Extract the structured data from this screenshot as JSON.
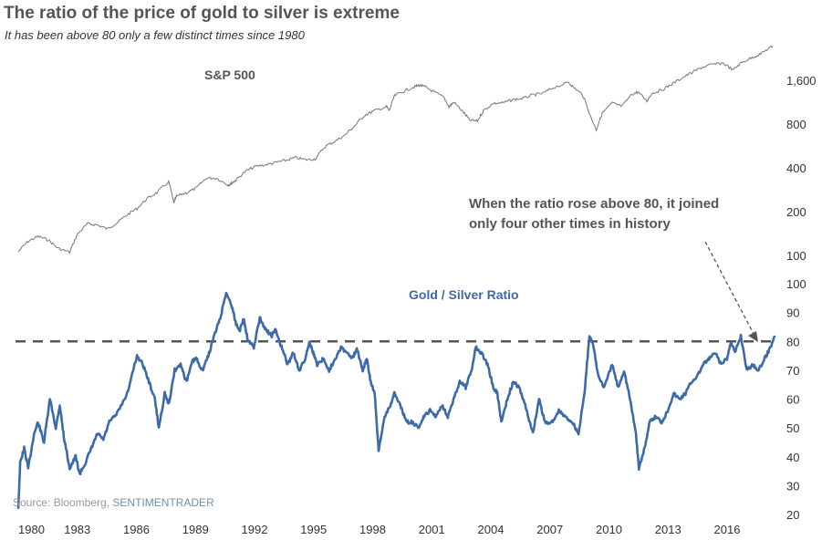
{
  "title": "The ratio of the price of gold to silver is extreme",
  "subtitle": "It has been above 80 only a few distinct times since 1980",
  "source": {
    "prefix": "Source: Bloomberg, ",
    "brand": "SENTIMENTRADER"
  },
  "colors": {
    "sp500": "#777777",
    "ratio": "#3d6aa8",
    "threshold": "#555555",
    "annotation": "#555555"
  },
  "chart_data": [
    {
      "type": "line",
      "title": "S&P 500",
      "scale": "log",
      "y_ticks": [
        100,
        200,
        400,
        800,
        1600
      ],
      "y_tick_labels": [
        "100",
        "200",
        "400",
        "800",
        "1,600"
      ],
      "series": [
        {
          "name": "S&P 500",
          "x": [
            1980.0,
            1980.5,
            1981.0,
            1981.5,
            1982.0,
            1982.6,
            1983.0,
            1983.5,
            1984.0,
            1984.5,
            1985.0,
            1985.5,
            1986.0,
            1986.5,
            1987.0,
            1987.6,
            1987.85,
            1988.0,
            1988.5,
            1989.0,
            1989.5,
            1990.0,
            1990.6,
            1990.8,
            1991.0,
            1991.5,
            1992.0,
            1992.5,
            1993.0,
            1993.5,
            1994.0,
            1994.5,
            1995.0,
            1995.5,
            1996.0,
            1996.5,
            1997.0,
            1997.5,
            1998.0,
            1998.6,
            1998.75,
            1999.0,
            1999.5,
            2000.0,
            2000.25,
            2000.5,
            2001.0,
            2001.5,
            2001.75,
            2002.0,
            2002.5,
            2002.8,
            2003.2,
            2003.5,
            2004.0,
            2004.5,
            2005.0,
            2005.5,
            2006.0,
            2006.5,
            2007.0,
            2007.8,
            2008.0,
            2008.5,
            2008.9,
            2009.2,
            2009.5,
            2010.0,
            2010.5,
            2011.0,
            2011.3,
            2011.75,
            2012.0,
            2012.5,
            2013.0,
            2013.5,
            2014.0,
            2014.5,
            2015.0,
            2015.6,
            2016.1,
            2016.5,
            2017.0,
            2017.5,
            2018.0,
            2018.1
          ],
          "y": [
            106,
            125,
            135,
            128,
            112,
            105,
            140,
            165,
            162,
            152,
            168,
            190,
            210,
            245,
            270,
            320,
            230,
            255,
            270,
            290,
            340,
            340,
            305,
            315,
            330,
            380,
            410,
            420,
            435,
            450,
            470,
            455,
            460,
            560,
            610,
            670,
            780,
            920,
            990,
            1050,
            990,
            1250,
            1350,
            1440,
            1480,
            1450,
            1330,
            1220,
            1050,
            1130,
            960,
            850,
            840,
            990,
            1110,
            1120,
            1180,
            1200,
            1270,
            1300,
            1420,
            1540,
            1450,
            1270,
            900,
            730,
            950,
            1115,
            1060,
            1280,
            1330,
            1150,
            1300,
            1370,
            1500,
            1650,
            1800,
            1950,
            2050,
            2100,
            1880,
            2100,
            2270,
            2430,
            2700,
            2750
          ]
        }
      ]
    },
    {
      "type": "line",
      "title": "Gold / Silver Ratio",
      "ylim": [
        20,
        100
      ],
      "y_ticks": [
        20,
        30,
        40,
        50,
        60,
        70,
        80,
        90,
        100
      ],
      "threshold": 80,
      "annotation": [
        "When the ratio rose above 80, it joined",
        "only four other times in history"
      ],
      "x_ticks": [
        "1980",
        "1983",
        "1986",
        "1989",
        "1992",
        "1995",
        "1998",
        "2001",
        "2004",
        "2007",
        "2010",
        "2013",
        "2016"
      ],
      "series": [
        {
          "name": "Gold / Silver Ratio",
          "x": [
            1980.0,
            1980.1,
            1980.3,
            1980.5,
            1980.8,
            1981.0,
            1981.3,
            1981.6,
            1981.9,
            1982.1,
            1982.3,
            1982.6,
            1982.9,
            1983.1,
            1983.4,
            1983.7,
            1984.0,
            1984.3,
            1984.6,
            1985.0,
            1985.5,
            1986.0,
            1986.3,
            1986.6,
            1986.9,
            1987.1,
            1987.4,
            1987.6,
            1987.9,
            1988.2,
            1988.5,
            1988.8,
            1989.0,
            1989.3,
            1989.6,
            1989.9,
            1990.2,
            1990.5,
            1990.8,
            1991.0,
            1991.2,
            1991.4,
            1991.6,
            1991.9,
            1992.2,
            1992.5,
            1992.8,
            1993.0,
            1993.3,
            1993.6,
            1993.9,
            1994.2,
            1994.5,
            1994.7,
            1994.9,
            1995.1,
            1995.4,
            1995.7,
            1996.0,
            1996.3,
            1996.6,
            1996.9,
            1997.1,
            1997.4,
            1997.6,
            1997.8,
            1998.0,
            1998.2,
            1998.5,
            1998.8,
            1999.0,
            1999.3,
            1999.6,
            1999.9,
            2000.2,
            2000.5,
            2000.8,
            2001.1,
            2001.4,
            2001.7,
            2002.0,
            2002.3,
            2002.6,
            2002.9,
            2003.1,
            2003.4,
            2003.7,
            2004.0,
            2004.2,
            2004.4,
            2004.7,
            2005.0,
            2005.3,
            2005.6,
            2006.0,
            2006.3,
            2006.6,
            2007.0,
            2007.3,
            2007.6,
            2008.0,
            2008.3,
            2008.6,
            2008.85,
            2009.0,
            2009.3,
            2009.6,
            2010.0,
            2010.3,
            2010.6,
            2010.9,
            2011.2,
            2011.35,
            2011.6,
            2011.9,
            2012.2,
            2012.5,
            2012.8,
            2013.1,
            2013.4,
            2013.7,
            2014.0,
            2014.3,
            2014.6,
            2014.9,
            2015.2,
            2015.5,
            2015.8,
            2016.0,
            2016.2,
            2016.5,
            2016.8,
            2017.1,
            2017.4,
            2017.7,
            2018.0,
            2018.2
          ],
          "y": [
            22,
            38,
            43,
            36,
            48,
            52,
            45,
            60,
            50,
            58,
            47,
            36,
            40,
            34,
            38,
            43,
            48,
            46,
            52,
            55,
            62,
            75,
            72,
            66,
            60,
            50,
            62,
            58,
            70,
            72,
            66,
            73,
            74,
            70,
            75,
            82,
            88,
            97,
            92,
            86,
            84,
            88,
            80,
            78,
            88,
            84,
            82,
            84,
            78,
            72,
            76,
            70,
            74,
            80,
            76,
            72,
            74,
            70,
            74,
            78,
            76,
            74,
            78,
            70,
            74,
            66,
            62,
            42,
            54,
            58,
            62,
            58,
            52,
            52,
            50,
            54,
            56,
            54,
            58,
            54,
            60,
            66,
            64,
            70,
            78,
            76,
            72,
            64,
            62,
            52,
            60,
            66,
            64,
            58,
            48,
            60,
            52,
            52,
            56,
            54,
            52,
            48,
            62,
            82,
            80,
            68,
            64,
            72,
            64,
            70,
            60,
            48,
            36,
            42,
            52,
            54,
            52,
            56,
            62,
            60,
            62,
            66,
            68,
            72,
            74,
            76,
            72,
            74,
            80,
            76,
            82,
            70,
            72,
            70,
            74,
            78,
            82
          ]
        }
      ]
    }
  ]
}
